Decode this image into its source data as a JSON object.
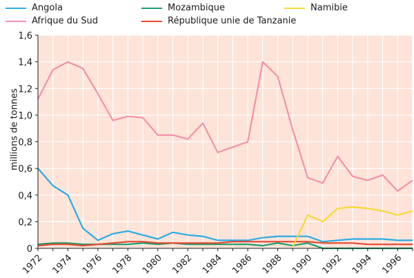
{
  "chart_data": {
    "type": "line",
    "ylabel": "millions de tonnes",
    "xlabel": "",
    "xlim": [
      1972,
      1997
    ],
    "ylim": [
      0,
      1.6
    ],
    "y_ticks": [
      0,
      0.2,
      0.4,
      0.6,
      0.8,
      1.0,
      1.2,
      1.4,
      1.6
    ],
    "y_tick_labels": [
      "0",
      "0,2",
      "0,4",
      "0,6",
      "0,8",
      "1,0",
      "1,2",
      "1,4",
      "1,6"
    ],
    "x_ticks": [
      1972,
      1974,
      1976,
      1978,
      1980,
      1982,
      1984,
      1986,
      1988,
      1990,
      1992,
      1994,
      1996
    ],
    "x_tick_labels": [
      "1972",
      "1974",
      "1976",
      "1978",
      "1980",
      "1982",
      "1984",
      "1986",
      "1988",
      "1990",
      "1992",
      "1994",
      "1996"
    ],
    "background_color": "#fde3d8",
    "grid": true,
    "legend_position": "top",
    "series": [
      {
        "name": "Angola",
        "color": "#29abe2",
        "x": [
          1972,
          1973,
          1974,
          1975,
          1976,
          1977,
          1978,
          1979,
          1980,
          1981,
          1982,
          1983,
          1984,
          1985,
          1986,
          1987,
          1988,
          1989,
          1990,
          1991,
          1992,
          1993,
          1994,
          1995,
          1996,
          1997
        ],
        "y": [
          0.6,
          0.47,
          0.4,
          0.15,
          0.06,
          0.11,
          0.13,
          0.1,
          0.07,
          0.12,
          0.1,
          0.09,
          0.06,
          0.06,
          0.06,
          0.08,
          0.09,
          0.09,
          0.09,
          0.05,
          0.06,
          0.07,
          0.07,
          0.07,
          0.06,
          0.06
        ]
      },
      {
        "name": "Afrique du Sud",
        "color": "#f291a9",
        "x": [
          1972,
          1973,
          1974,
          1975,
          1976,
          1977,
          1978,
          1979,
          1980,
          1981,
          1982,
          1983,
          1984,
          1985,
          1986,
          1987,
          1988,
          1989,
          1990,
          1991,
          1992,
          1993,
          1994,
          1995,
          1996,
          1997
        ],
        "y": [
          1.12,
          1.34,
          1.4,
          1.35,
          1.16,
          0.96,
          0.99,
          0.98,
          0.85,
          0.85,
          0.82,
          0.94,
          0.72,
          0.76,
          0.8,
          1.4,
          1.29,
          0.89,
          0.53,
          0.49,
          0.69,
          0.54,
          0.51,
          0.55,
          0.43,
          0.51
        ]
      },
      {
        "name": "Mozambique",
        "color": "#1a9c6e",
        "x": [
          1972,
          1973,
          1974,
          1975,
          1976,
          1977,
          1978,
          1979,
          1980,
          1981,
          1982,
          1983,
          1984,
          1985,
          1986,
          1987,
          1988,
          1989,
          1990,
          1991,
          1992,
          1993,
          1994,
          1995,
          1996,
          1997
        ],
        "y": [
          0.03,
          0.04,
          0.04,
          0.03,
          0.03,
          0.03,
          0.03,
          0.04,
          0.03,
          0.04,
          0.03,
          0.03,
          0.03,
          0.03,
          0.03,
          0.02,
          0.04,
          0.02,
          0.04,
          0.0,
          0.0,
          0.0,
          0.0,
          0.0,
          0.0,
          0.0
        ]
      },
      {
        "name": "République unie de Tanzanie",
        "color": "#e8462e",
        "x": [
          1972,
          1973,
          1974,
          1975,
          1976,
          1977,
          1978,
          1979,
          1980,
          1981,
          1982,
          1983,
          1984,
          1985,
          1986,
          1987,
          1988,
          1989,
          1990,
          1991,
          1992,
          1993,
          1994,
          1995,
          1996,
          1997
        ],
        "y": [
          0.02,
          0.03,
          0.03,
          0.02,
          0.03,
          0.04,
          0.05,
          0.05,
          0.04,
          0.04,
          0.04,
          0.04,
          0.04,
          0.05,
          0.05,
          0.05,
          0.05,
          0.05,
          0.05,
          0.04,
          0.04,
          0.04,
          0.03,
          0.03,
          0.03,
          0.03
        ]
      },
      {
        "name": "Namibie",
        "color": "#f7d932",
        "x": [
          1989,
          1990,
          1991,
          1992,
          1993,
          1994,
          1995,
          1996,
          1997
        ],
        "y": [
          0.01,
          0.25,
          0.2,
          0.3,
          0.31,
          0.3,
          0.28,
          0.25,
          0.28
        ]
      }
    ]
  }
}
